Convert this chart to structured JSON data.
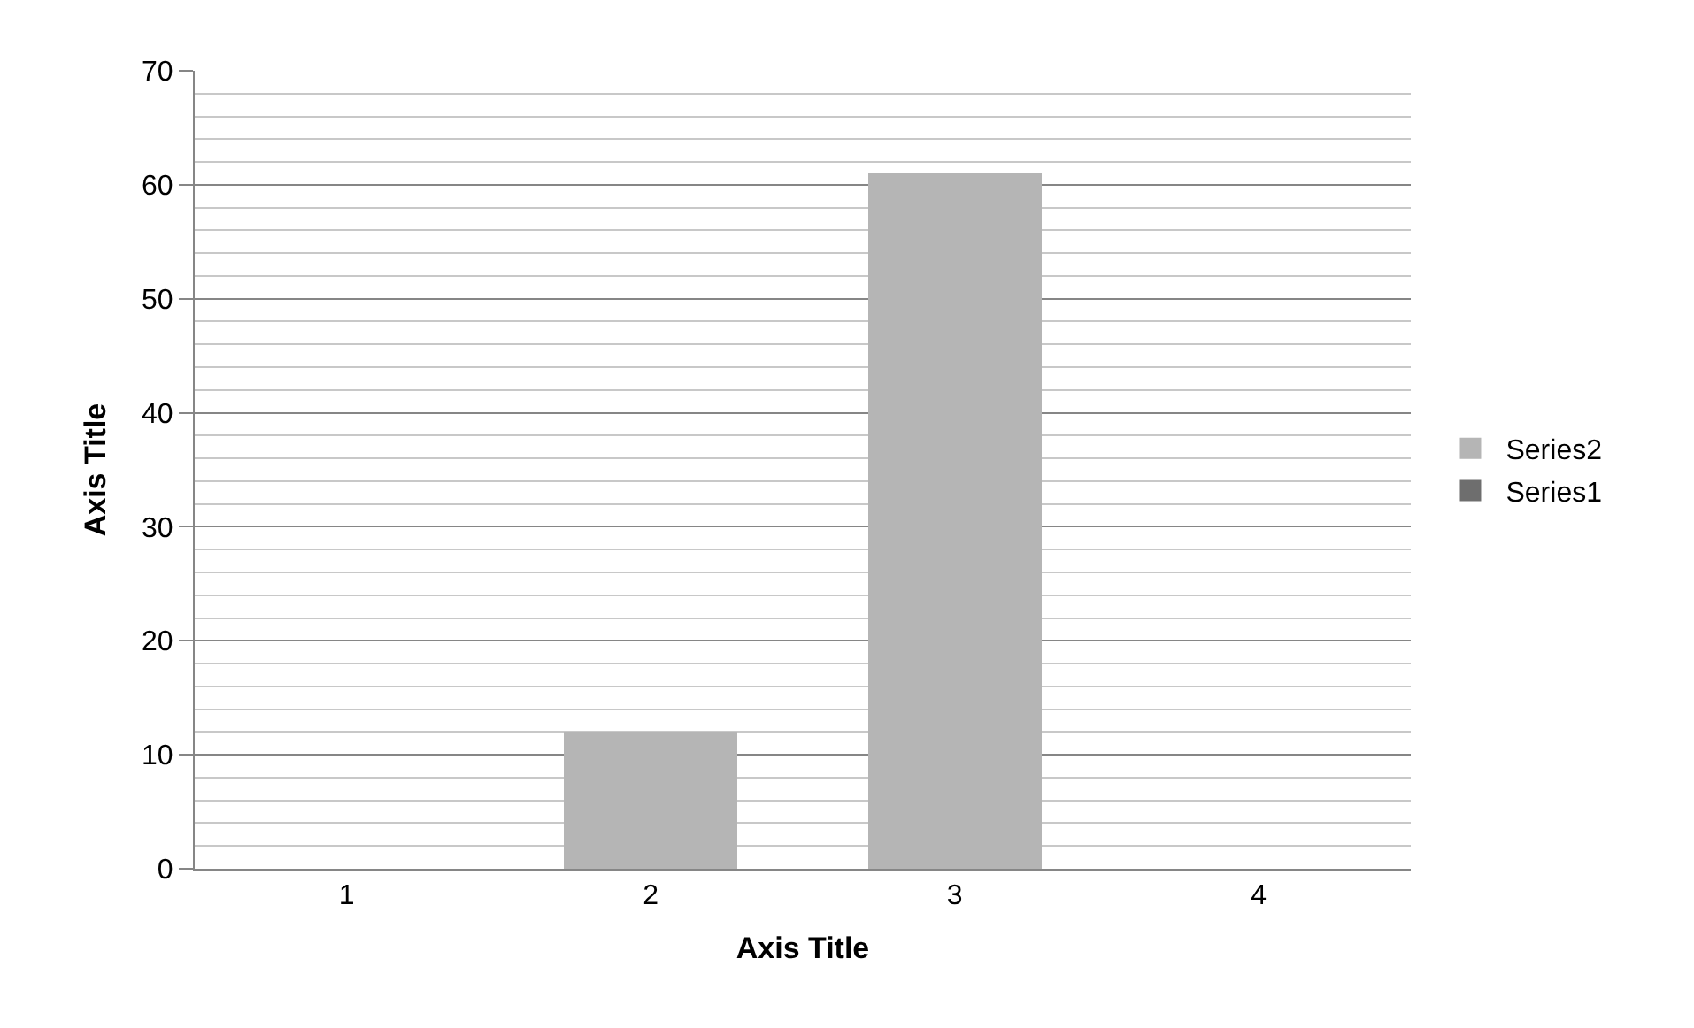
{
  "chart_data": {
    "type": "bar",
    "stacked": true,
    "xlabel": "Axis Title",
    "ylabel": "Axis Title",
    "categories": [
      "1",
      "2",
      "3",
      "4"
    ],
    "series": [
      {
        "name": "Series1",
        "color": "#6e6e6e",
        "values": [
          0,
          0,
          0,
          0
        ]
      },
      {
        "name": "Series2",
        "color": "#b5b5b5",
        "values": [
          0,
          12,
          61,
          0
        ]
      }
    ],
    "ylim": [
      0,
      70
    ],
    "yticks": [
      0,
      10,
      20,
      30,
      40,
      50,
      60,
      70
    ],
    "grid": "y",
    "legend": "right"
  }
}
